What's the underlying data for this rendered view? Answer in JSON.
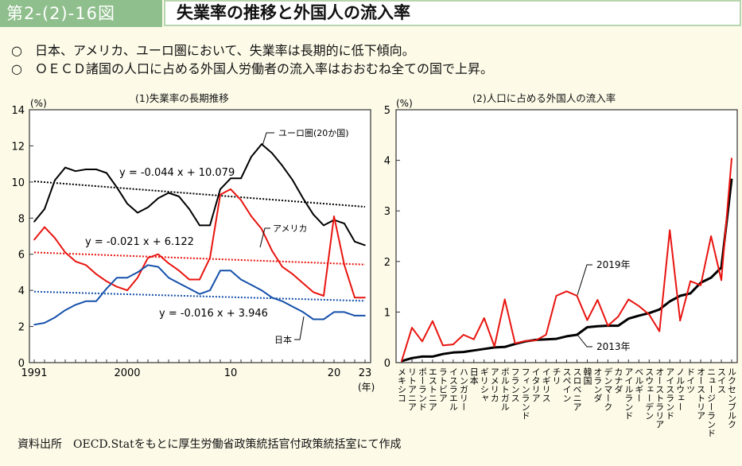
{
  "header": {
    "figure_number": "第2-(2)-16図",
    "title": "失業率の推移と外国人の流入率"
  },
  "summary": [
    {
      "bullet": "○",
      "text": "日本、アメリカ、ユーロ圏において、失業率は長期的に低下傾向。"
    },
    {
      "bullet": "○",
      "text": "ＯＥＣＤ諸国の人口に占める外国人労働者の流入率はおおむね全ての国で上昇。"
    }
  ],
  "footer": "資料出所　OECD.Statをもとに厚生労働省政策統括官付政策統括室にて作成",
  "colors": {
    "euro": "#000000",
    "usa": "#e8140f",
    "japan": "#1550aa",
    "y2019": "#e8140f",
    "y2013": "#000000",
    "header_green": "#8fbf8c",
    "background": "#fdfbe8"
  },
  "chart_data": [
    {
      "type": "line",
      "title": "(1)失業率の長期推移",
      "ylabel": "(%)",
      "xlabel": "(年)",
      "ylim": [
        0,
        14
      ],
      "yticks": [
        0,
        2,
        4,
        6,
        8,
        10,
        12,
        14
      ],
      "x": [
        1991,
        1992,
        1993,
        1994,
        1995,
        1996,
        1997,
        1998,
        1999,
        2000,
        2001,
        2002,
        2003,
        2004,
        2005,
        2006,
        2007,
        2008,
        2009,
        2010,
        2011,
        2012,
        2013,
        2014,
        2015,
        2016,
        2017,
        2018,
        2019,
        2020,
        2021,
        2022,
        2023
      ],
      "xtick_labels": [
        {
          "x": 1991,
          "label": "1991"
        },
        {
          "x": 2000,
          "label": "2000"
        },
        {
          "x": 2010,
          "label": "10"
        },
        {
          "x": 2020,
          "label": "20"
        },
        {
          "x": 2023,
          "label": "23"
        }
      ],
      "series": [
        {
          "name": "ユーロ圏(20か国)",
          "key": "euro",
          "values": [
            7.8,
            8.5,
            10.1,
            10.8,
            10.6,
            10.7,
            10.7,
            10.5,
            9.7,
            8.8,
            8.3,
            8.6,
            9.1,
            9.4,
            9.2,
            8.5,
            7.6,
            7.6,
            9.6,
            10.2,
            10.2,
            11.4,
            12.1,
            11.6,
            10.9,
            10.1,
            9.1,
            8.2,
            7.6,
            7.9,
            7.7,
            6.7,
            6.5
          ],
          "trend": {
            "label": "y = -0.044 x + 10.079",
            "slope": -0.044,
            "intercept": 10.079
          }
        },
        {
          "name": "アメリカ",
          "key": "usa",
          "values": [
            6.8,
            7.5,
            6.9,
            6.1,
            5.6,
            5.4,
            4.9,
            4.5,
            4.2,
            4.0,
            4.7,
            5.8,
            6.0,
            5.5,
            5.1,
            4.6,
            4.6,
            5.8,
            9.3,
            9.6,
            9.0,
            8.1,
            7.4,
            6.2,
            5.3,
            4.9,
            4.4,
            3.9,
            3.7,
            8.1,
            5.4,
            3.6,
            3.6
          ],
          "trend": {
            "label": "y = -0.021 x + 6.122",
            "slope": -0.021,
            "intercept": 6.122
          }
        },
        {
          "name": "日本",
          "key": "japan",
          "values": [
            2.1,
            2.2,
            2.5,
            2.9,
            3.2,
            3.4,
            3.4,
            4.1,
            4.7,
            4.7,
            5.0,
            5.4,
            5.3,
            4.7,
            4.4,
            4.1,
            3.8,
            4.0,
            5.1,
            5.1,
            4.6,
            4.3,
            4.0,
            3.6,
            3.4,
            3.1,
            2.8,
            2.4,
            2.4,
            2.8,
            2.8,
            2.6,
            2.6
          ],
          "trend": {
            "label": "y = -0.016 x + 3.946",
            "slope": -0.016,
            "intercept": 3.946
          }
        }
      ],
      "grid": false
    },
    {
      "type": "line",
      "title": "(2)人口に占める外国人の流入率",
      "ylabel": "(%)",
      "ylim": [
        0,
        5
      ],
      "yticks": [
        0,
        1,
        2,
        3,
        4,
        5
      ],
      "categories": [
        "メキシコ",
        "リトアニア",
        "ポーランド",
        "エストニア",
        "ラトビア",
        "イスラエル",
        "ハンガリー",
        "日本",
        "ギリシャ",
        "アメリカ",
        "ポルトガル",
        "フランス",
        "フィンランド",
        "イタリア",
        "イギリス",
        "チリ",
        "スペイン",
        "スロベニア",
        "韓国",
        "オランダ",
        "デンマーク",
        "カナダ",
        "アイルランド",
        "ベルギー",
        "スウェーデン",
        "オーストラリア",
        "アイスランド",
        "ノルウェー",
        "ドイツ",
        "オーストリア",
        "ニュージーランド",
        "スイス",
        "ルクセンブルク"
      ],
      "series": [
        {
          "name": "2019年",
          "key": "y2019",
          "values": [
            0.03,
            0.69,
            0.42,
            0.82,
            0.34,
            0.36,
            0.55,
            0.46,
            0.88,
            0.32,
            1.25,
            0.38,
            0.43,
            0.44,
            0.55,
            1.32,
            1.41,
            1.32,
            0.84,
            1.24,
            0.73,
            0.91,
            1.25,
            1.12,
            0.95,
            0.62,
            2.62,
            0.83,
            1.61,
            1.53,
            2.5,
            1.63,
            4.04
          ]
        },
        {
          "name": "2013年",
          "key": "y2013",
          "values": [
            0.03,
            0.09,
            0.12,
            0.12,
            0.17,
            0.2,
            0.21,
            0.24,
            0.27,
            0.3,
            0.31,
            0.37,
            0.42,
            0.45,
            0.46,
            0.47,
            0.52,
            0.55,
            0.7,
            0.72,
            0.73,
            0.73,
            0.87,
            0.93,
            0.98,
            1.05,
            1.21,
            1.32,
            1.37,
            1.58,
            1.68,
            1.88,
            3.63
          ]
        }
      ],
      "grid": false
    }
  ]
}
